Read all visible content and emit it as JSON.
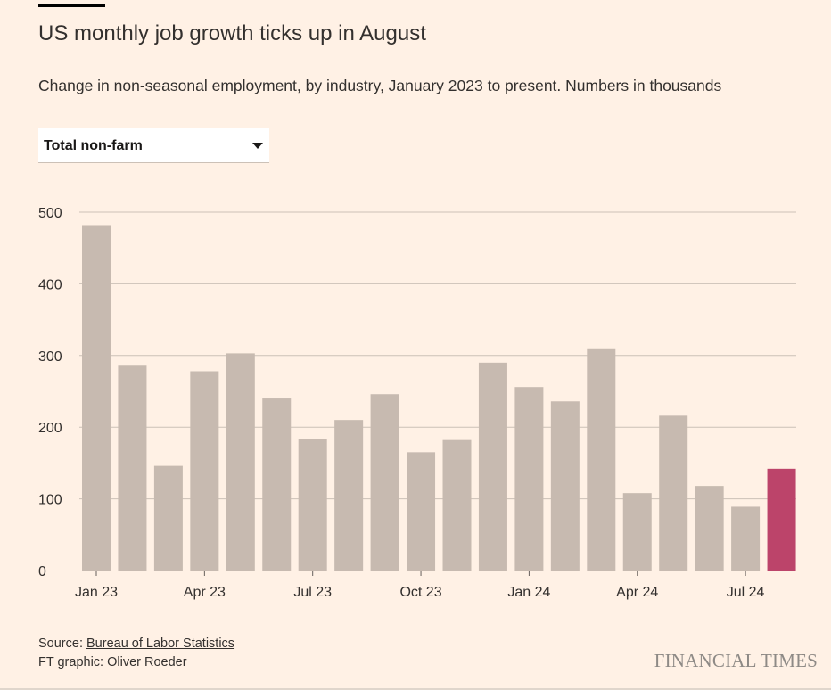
{
  "header": {
    "title": "US monthly job growth ticks up in August",
    "subtitle": "Change in non-seasonal employment, by industry, January 2023 to present. Numbers in thousands"
  },
  "selector": {
    "selected": "Total non-farm"
  },
  "colors": {
    "background": "#FFF1E5",
    "bar": "#C7BAB0",
    "highlight": "#BC446A",
    "grid": "#CCC1B7",
    "axis": "#66605C"
  },
  "chart_data": {
    "type": "bar",
    "title": "US monthly job growth ticks up in August",
    "xlabel": "",
    "ylabel": "",
    "ylim": [
      0,
      500
    ],
    "yticks": [
      0,
      100,
      200,
      300,
      400,
      500
    ],
    "grid": true,
    "categories": [
      "Jan 23",
      "Feb 23",
      "Mar 23",
      "Apr 23",
      "May 23",
      "Jun 23",
      "Jul 23",
      "Aug 23",
      "Sep 23",
      "Oct 23",
      "Nov 23",
      "Dec 23",
      "Jan 24",
      "Feb 24",
      "Mar 24",
      "Apr 24",
      "May 24",
      "Jun 24",
      "Jul 24",
      "Aug 24"
    ],
    "values": [
      482,
      287,
      146,
      278,
      303,
      240,
      184,
      210,
      246,
      165,
      182,
      290,
      256,
      236,
      310,
      108,
      216,
      118,
      89,
      142
    ],
    "highlight_index": 19,
    "xtick_labels": [
      {
        "index": 0,
        "label": "Jan 23"
      },
      {
        "index": 3,
        "label": "Apr 23"
      },
      {
        "index": 6,
        "label": "Jul 23"
      },
      {
        "index": 9,
        "label": "Oct 23"
      },
      {
        "index": 12,
        "label": "Jan 24"
      },
      {
        "index": 15,
        "label": "Apr 24"
      },
      {
        "index": 18,
        "label": "Jul 24"
      }
    ]
  },
  "footer": {
    "source_prefix": "Source: ",
    "source_link": "Bureau of Labor Statistics",
    "credit": "FT graphic: Oliver Roeder",
    "brand": "FINANCIAL TIMES"
  }
}
